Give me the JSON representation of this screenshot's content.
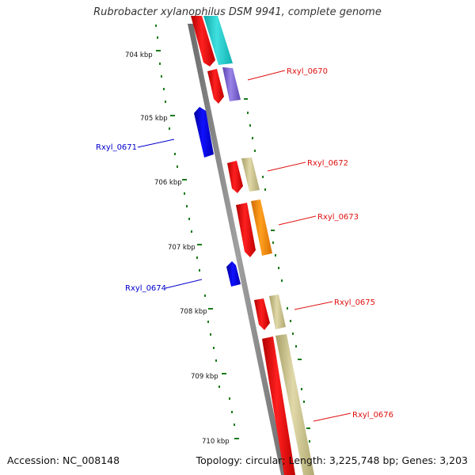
{
  "title": "Rubrobacter xylanophilus DSM 9941, complete genome",
  "footer": {
    "accession": "Accession: NC_008148",
    "summary": "Topology: circular; Length: 3,225,748 bp; Genes: 3,203"
  },
  "ticks": [
    {
      "label": "704 kbp"
    },
    {
      "label": "705 kbp"
    },
    {
      "label": "706 kbp"
    },
    {
      "label": "707 kbp"
    },
    {
      "label": "708 kbp"
    },
    {
      "label": "709 kbp"
    },
    {
      "label": "710 kbp"
    }
  ],
  "genes": [
    {
      "label": "Rxyl_0670",
      "color": "#e01010"
    },
    {
      "label": "Rxyl_0671",
      "color": "#0000cc"
    },
    {
      "label": "Rxyl_0672",
      "color": "#e01010"
    },
    {
      "label": "Rxyl_0673",
      "color": "#e01010"
    },
    {
      "label": "Rxyl_0674",
      "color": "#0000cc"
    },
    {
      "label": "Rxyl_0675",
      "color": "#e01010"
    },
    {
      "label": "Rxyl_0676",
      "color": "#e01010"
    }
  ],
  "colors": {
    "forward_cds": "#ff0000",
    "reverse_cds": "#0000ff",
    "backbone": "#808080",
    "tick_marks": "#1a7a1a",
    "cog_cyan": "#1fc8c8",
    "cog_purple": "#7a60d0",
    "cog_khaki": "#c8c088",
    "cog_orange": "#ff8c00"
  }
}
